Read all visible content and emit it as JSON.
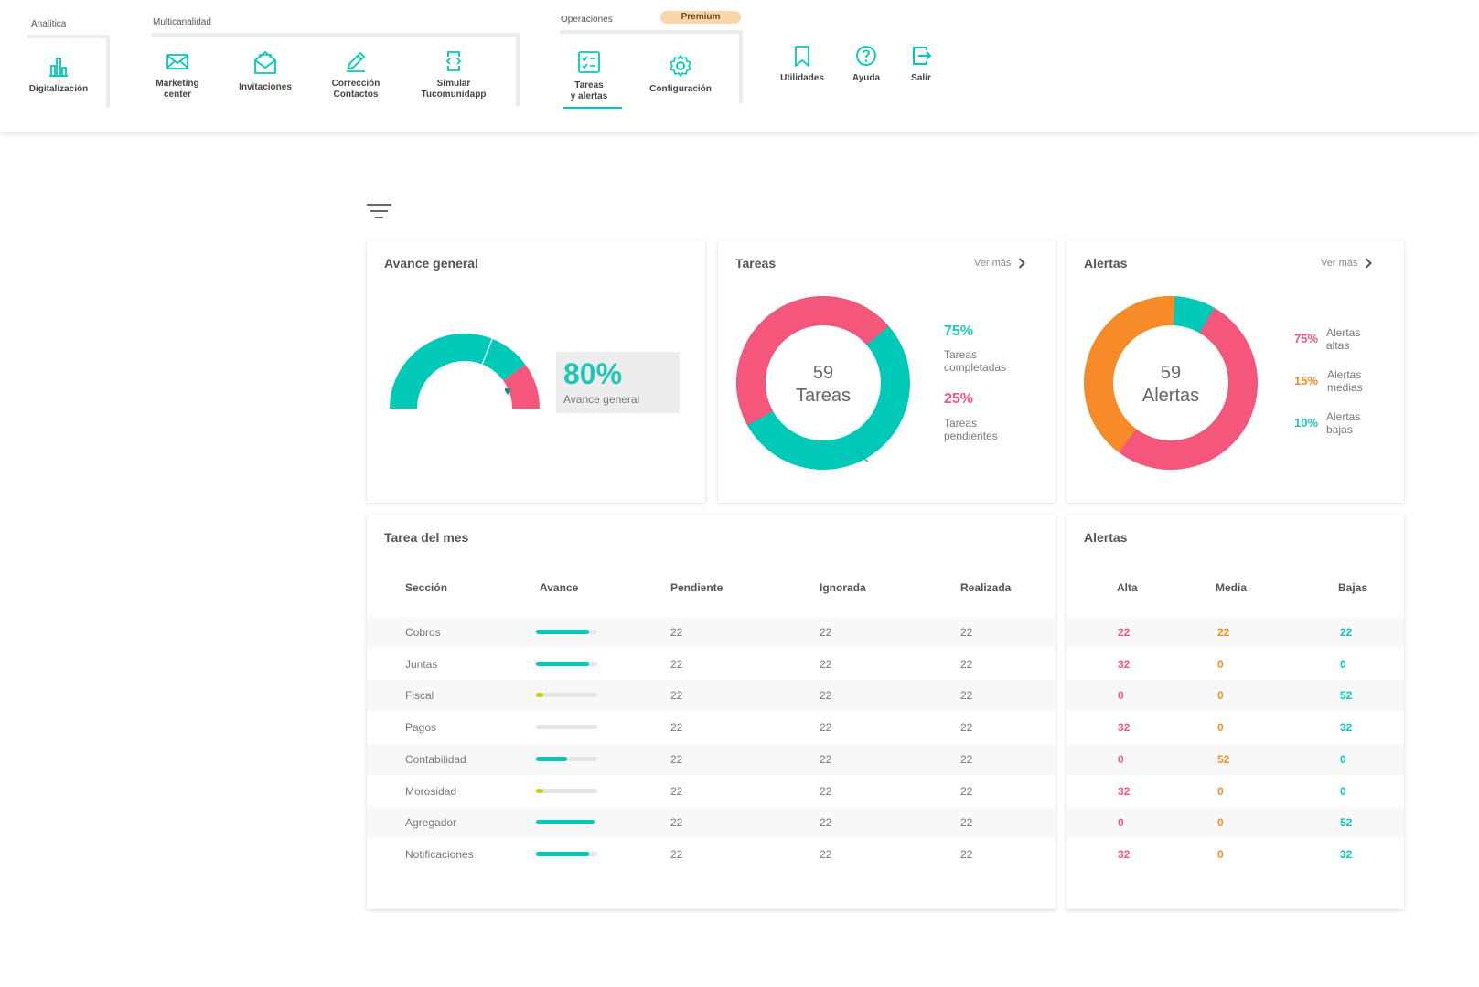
{
  "colors": {
    "teal": "#00c9b7",
    "pink": "#f5577c",
    "orange": "#f68b27",
    "lime": "#c9d300",
    "premium_bg": "#f9d7a8"
  },
  "ribbon": {
    "groups": {
      "analitica": "Analítica",
      "multicanalidad": "Multicanalidad",
      "operaciones": "Operaciones"
    },
    "premium_label": "Premium",
    "tools": {
      "digitalizacion": {
        "label": "Digitalización",
        "icon": "bar-chart-icon"
      },
      "marketing": {
        "label": "Marketing\ncenter",
        "icon": "envelope-icon"
      },
      "invitaciones": {
        "label": "Invitaciones",
        "icon": "open-envelope-icon"
      },
      "correccion": {
        "label": "Corrección\nContactos",
        "icon": "pencil-icon"
      },
      "simular": {
        "label": "Simular\nTucomunidapp",
        "icon": "phone-icon"
      },
      "tareas": {
        "label": "Tareas\ny alertas",
        "icon": "checklist-icon"
      },
      "configuracion": {
        "label": "Configuración",
        "icon": "gear-icon"
      },
      "utilidades": {
        "label": "Utilidades",
        "icon": "bookmark-icon"
      },
      "ayuda": {
        "label": "Ayuda",
        "icon": "help-circle-icon"
      },
      "salir": {
        "label": "Salir",
        "icon": "exit-icon"
      }
    }
  },
  "avance": {
    "title": "Avance general",
    "percent": "80%",
    "label": "Avance general",
    "gauge_value": 0.8
  },
  "tareas": {
    "title": "Tareas",
    "ver_mas": "Ver más",
    "center_value": "59",
    "center_label": "Tareas",
    "completadas_pct": "75%",
    "completadas_label": "Tareas\ncompletadas",
    "pendientes_pct": "25%",
    "pendientes_label": "Tareas\npendientes"
  },
  "alertas": {
    "title": "Alertas",
    "ver_mas": "Ver más",
    "center_value": "59",
    "center_label": "Alertas",
    "altas_pct": "75%",
    "altas_label": "Alertas\naltas",
    "medias_pct": "15%",
    "medias_label": "Alertas\nmedias",
    "bajas_pct": "10%",
    "bajas_label": "Alertas\nbajas"
  },
  "tarea_mes": {
    "title": "Tarea del mes",
    "headers": [
      "Sección",
      "Avance",
      "Pendiente",
      "Ignorada",
      "Realizada"
    ],
    "rows": [
      {
        "seccion": "Cobros",
        "avance": 0.86,
        "bar": "teal",
        "pendiente": "22",
        "ignorada": "22",
        "realizada": "22"
      },
      {
        "seccion": "Juntas",
        "avance": 0.86,
        "bar": "teal",
        "pendiente": "22",
        "ignorada": "22",
        "realizada": "22"
      },
      {
        "seccion": "Fiscal",
        "avance": 0.12,
        "bar": "lime",
        "pendiente": "22",
        "ignorada": "22",
        "realizada": "22"
      },
      {
        "seccion": "Pagos",
        "avance": 0.0,
        "bar": "teal",
        "pendiente": "22",
        "ignorada": "22",
        "realizada": "22"
      },
      {
        "seccion": "Contabilidad",
        "avance": 0.5,
        "bar": "teal",
        "pendiente": "22",
        "ignorada": "22",
        "realizada": "22"
      },
      {
        "seccion": "Morosidad",
        "avance": 0.12,
        "bar": "lime",
        "pendiente": "22",
        "ignorada": "22",
        "realizada": "22"
      },
      {
        "seccion": "Agregador",
        "avance": 0.95,
        "bar": "teal",
        "pendiente": "22",
        "ignorada": "22",
        "realizada": "22"
      },
      {
        "seccion": "Notificaciones",
        "avance": 0.86,
        "bar": "teal",
        "pendiente": "22",
        "ignorada": "22",
        "realizada": "22"
      }
    ]
  },
  "alertas_tabla": {
    "title": "Alertas",
    "headers": [
      "Alta",
      "Media",
      "Bajas"
    ],
    "rows": [
      {
        "alta": "22",
        "media": "22",
        "bajas": "22"
      },
      {
        "alta": "32",
        "media": "0",
        "bajas": "0"
      },
      {
        "alta": "0",
        "media": "0",
        "bajas": "52"
      },
      {
        "alta": "32",
        "media": "0",
        "bajas": "32"
      },
      {
        "alta": "0",
        "media": "52",
        "bajas": "0"
      },
      {
        "alta": "32",
        "media": "0",
        "bajas": "0"
      },
      {
        "alta": "0",
        "media": "0",
        "bajas": "52"
      },
      {
        "alta": "32",
        "media": "0",
        "bajas": "32"
      }
    ]
  }
}
